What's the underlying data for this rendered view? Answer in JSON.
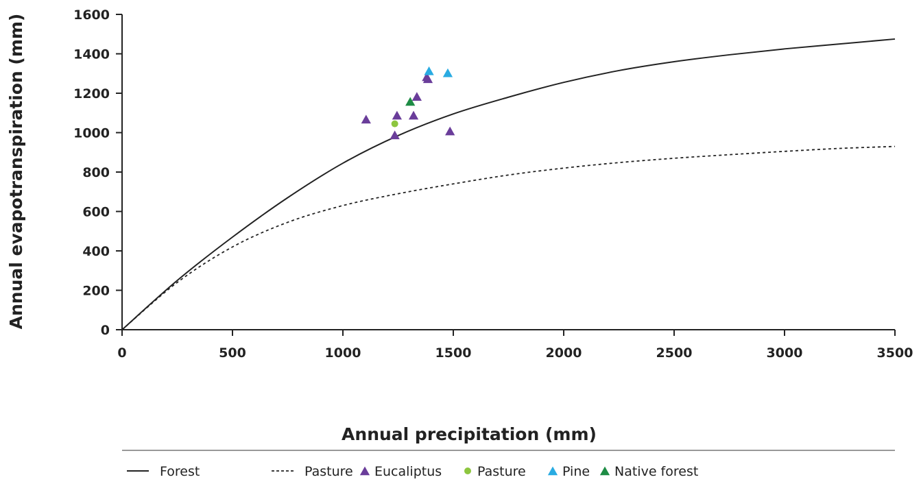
{
  "chart_data": {
    "type": "line",
    "xlabel": "Annual precipitation (mm)",
    "ylabel": "Annual evapotranspiration (mm)",
    "xlim": [
      0,
      3500
    ],
    "ylim": [
      0,
      1600
    ],
    "xticks": [
      0,
      500,
      1000,
      1500,
      2000,
      2500,
      3000,
      3500
    ],
    "yticks": [
      0,
      200,
      400,
      600,
      800,
      1000,
      1200,
      1400,
      1600
    ],
    "grid": false,
    "legend_position": "bottom",
    "series": [
      {
        "name": "Forest",
        "kind": "line",
        "style": "solid",
        "color": "#222222",
        "x": [
          0,
          250,
          500,
          750,
          1000,
          1250,
          1500,
          1750,
          2000,
          2250,
          2500,
          2750,
          3000,
          3250,
          3500
        ],
        "y": [
          0,
          250,
          470,
          670,
          845,
          985,
          1095,
          1180,
          1255,
          1315,
          1360,
          1395,
          1425,
          1450,
          1475
        ]
      },
      {
        "name": "Pasture",
        "kind": "line",
        "style": "dashed",
        "color": "#222222",
        "x": [
          0,
          250,
          500,
          750,
          1000,
          1250,
          1500,
          1750,
          2000,
          2250,
          2500,
          2750,
          3000,
          3250,
          3500
        ],
        "y": [
          0,
          240,
          420,
          545,
          630,
          690,
          740,
          785,
          820,
          848,
          870,
          888,
          905,
          920,
          930
        ]
      },
      {
        "name": "Eucaliptus",
        "kind": "scatter",
        "marker": "triangle",
        "color": "#6a3d9a",
        "x": [
          1105,
          1235,
          1245,
          1320,
          1335,
          1380,
          1385,
          1485
        ],
        "y": [
          1065,
          985,
          1085,
          1085,
          1180,
          1280,
          1270,
          1005
        ]
      },
      {
        "name": "Pasture",
        "kind": "scatter",
        "marker": "circle",
        "color": "#8dc63f",
        "x": [
          1235
        ],
        "y": [
          1045
        ]
      },
      {
        "name": "Pine",
        "kind": "scatter",
        "marker": "triangle",
        "color": "#29abe2",
        "x": [
          1390,
          1475
        ],
        "y": [
          1310,
          1300
        ]
      },
      {
        "name": "Native forest",
        "kind": "scatter",
        "marker": "triangle",
        "color": "#1e8c45",
        "x": [
          1305
        ],
        "y": [
          1155
        ]
      }
    ]
  }
}
